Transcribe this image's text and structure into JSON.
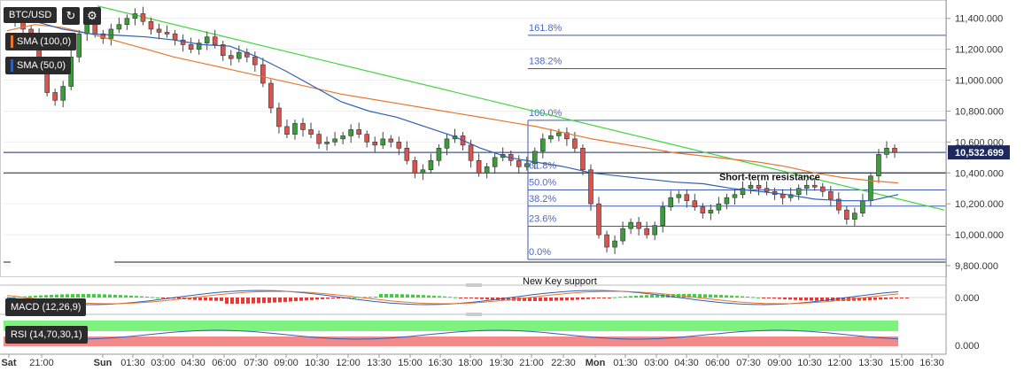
{
  "header": {
    "symbol": "BTC/USD",
    "refresh_icon": "refresh-icon",
    "settings_icon": "gear-icon"
  },
  "indicators": {
    "sma100": {
      "label": "SMA (100,0)",
      "color": "#e8772e"
    },
    "sma50": {
      "label": "SMA (50,0)",
      "color": "#2f5fb3"
    },
    "macd": {
      "label": "MACD (12,26,9)"
    },
    "rsi": {
      "label": "RSI (14,70,30,1)"
    }
  },
  "price_tag": "10,532.699",
  "annotations": {
    "short_term_resistance": "Short-term resistance",
    "new_key_support": "New Key support"
  },
  "chart_data": [
    {
      "type": "candlestick",
      "title": "BTC/USD",
      "y_ticks": [
        "11,400.000",
        "11,200.000",
        "11,000.000",
        "10,800.000",
        "10,600.000",
        "10,400.000",
        "10,200.000",
        "10,000.000",
        "9,800.000"
      ],
      "y_range": [
        9800,
        11450
      ],
      "x_ticks": [
        "Sat",
        "21:00",
        "Sun",
        "01:30",
        "03:00",
        "04:30",
        "06:00",
        "07:30",
        "09:00",
        "10:30",
        "12:00",
        "13:30",
        "15:00",
        "16:30",
        "18:00",
        "19:30",
        "21:00",
        "22:30",
        "Mon",
        "01:30",
        "03:00",
        "04:30",
        "06:00",
        "07:30",
        "09:00",
        "10:30",
        "12:00",
        "13:30",
        "15:00",
        "16:30"
      ],
      "last_price": 10532.699,
      "fibonacci": [
        {
          "label": "161.8%",
          "price": 11290
        },
        {
          "label": "138.2%",
          "price": 11075
        },
        {
          "label": "100.0%",
          "price": 10740
        },
        {
          "label": "61.8%",
          "price": 10400
        },
        {
          "label": "50.0%",
          "price": 10290
        },
        {
          "label": "38.2%",
          "price": 10185
        },
        {
          "label": "23.6%",
          "price": 10055
        },
        {
          "label": "0.0%",
          "price": 9840
        }
      ],
      "close_series": [
        11410,
        11390,
        11330,
        11300,
        11100,
        10920,
        10870,
        10960,
        11150,
        11300,
        11360,
        11300,
        11270,
        11330,
        11360,
        11400,
        11430,
        11380,
        11330,
        11310,
        11300,
        11260,
        11230,
        11200,
        11240,
        11280,
        11230,
        11160,
        11140,
        11180,
        11150,
        11100,
        10980,
        10820,
        10700,
        10650,
        10720,
        10680,
        10650,
        10590,
        10600,
        10620,
        10640,
        10680,
        10650,
        10600,
        10580,
        10620,
        10600,
        10560,
        10480,
        10400,
        10420,
        10480,
        10560,
        10620,
        10640,
        10580,
        10480,
        10400,
        10440,
        10500,
        10520,
        10480,
        10440,
        10460,
        10540,
        10620,
        10640,
        10660,
        10620,
        10560,
        10420,
        10200,
        10000,
        9920,
        9960,
        10040,
        10080,
        10040,
        10000,
        10060,
        10180,
        10240,
        10260,
        10220,
        10180,
        10140,
        10160,
        10200,
        10240,
        10260,
        10300,
        10320,
        10300,
        10280,
        10260,
        10240,
        10260,
        10300,
        10320,
        10310,
        10280,
        10230,
        10160,
        10100,
        10140,
        10220,
        10380,
        10520,
        10560,
        10533
      ],
      "sma100": [
        11320,
        11360,
        11340,
        11300,
        11250,
        11200,
        11150,
        11110,
        11070,
        11030,
        10990,
        10950,
        10910,
        10880,
        10850,
        10820,
        10790,
        10760,
        10730,
        10700,
        10660,
        10620,
        10590,
        10560,
        10530,
        10510,
        10490,
        10470,
        10440,
        10400,
        10370,
        10350,
        10335
      ],
      "sma50": [
        11400,
        11380,
        11330,
        11300,
        11290,
        11280,
        11260,
        11230,
        11220,
        11150,
        11060,
        10960,
        10860,
        10800,
        10760,
        10700,
        10640,
        10560,
        10500,
        10470,
        10440,
        10400,
        10380,
        10360,
        10340,
        10330,
        10300,
        10280,
        10260,
        10230,
        10220,
        10220,
        10260
      ],
      "trendline": [
        [
          0,
          11480
        ],
        [
          1,
          10160
        ]
      ],
      "macd": {
        "zero_label": "0.000"
      },
      "rsi": {
        "zero_label": "0.000",
        "overbought": 70,
        "oversold": 30
      }
    }
  ]
}
